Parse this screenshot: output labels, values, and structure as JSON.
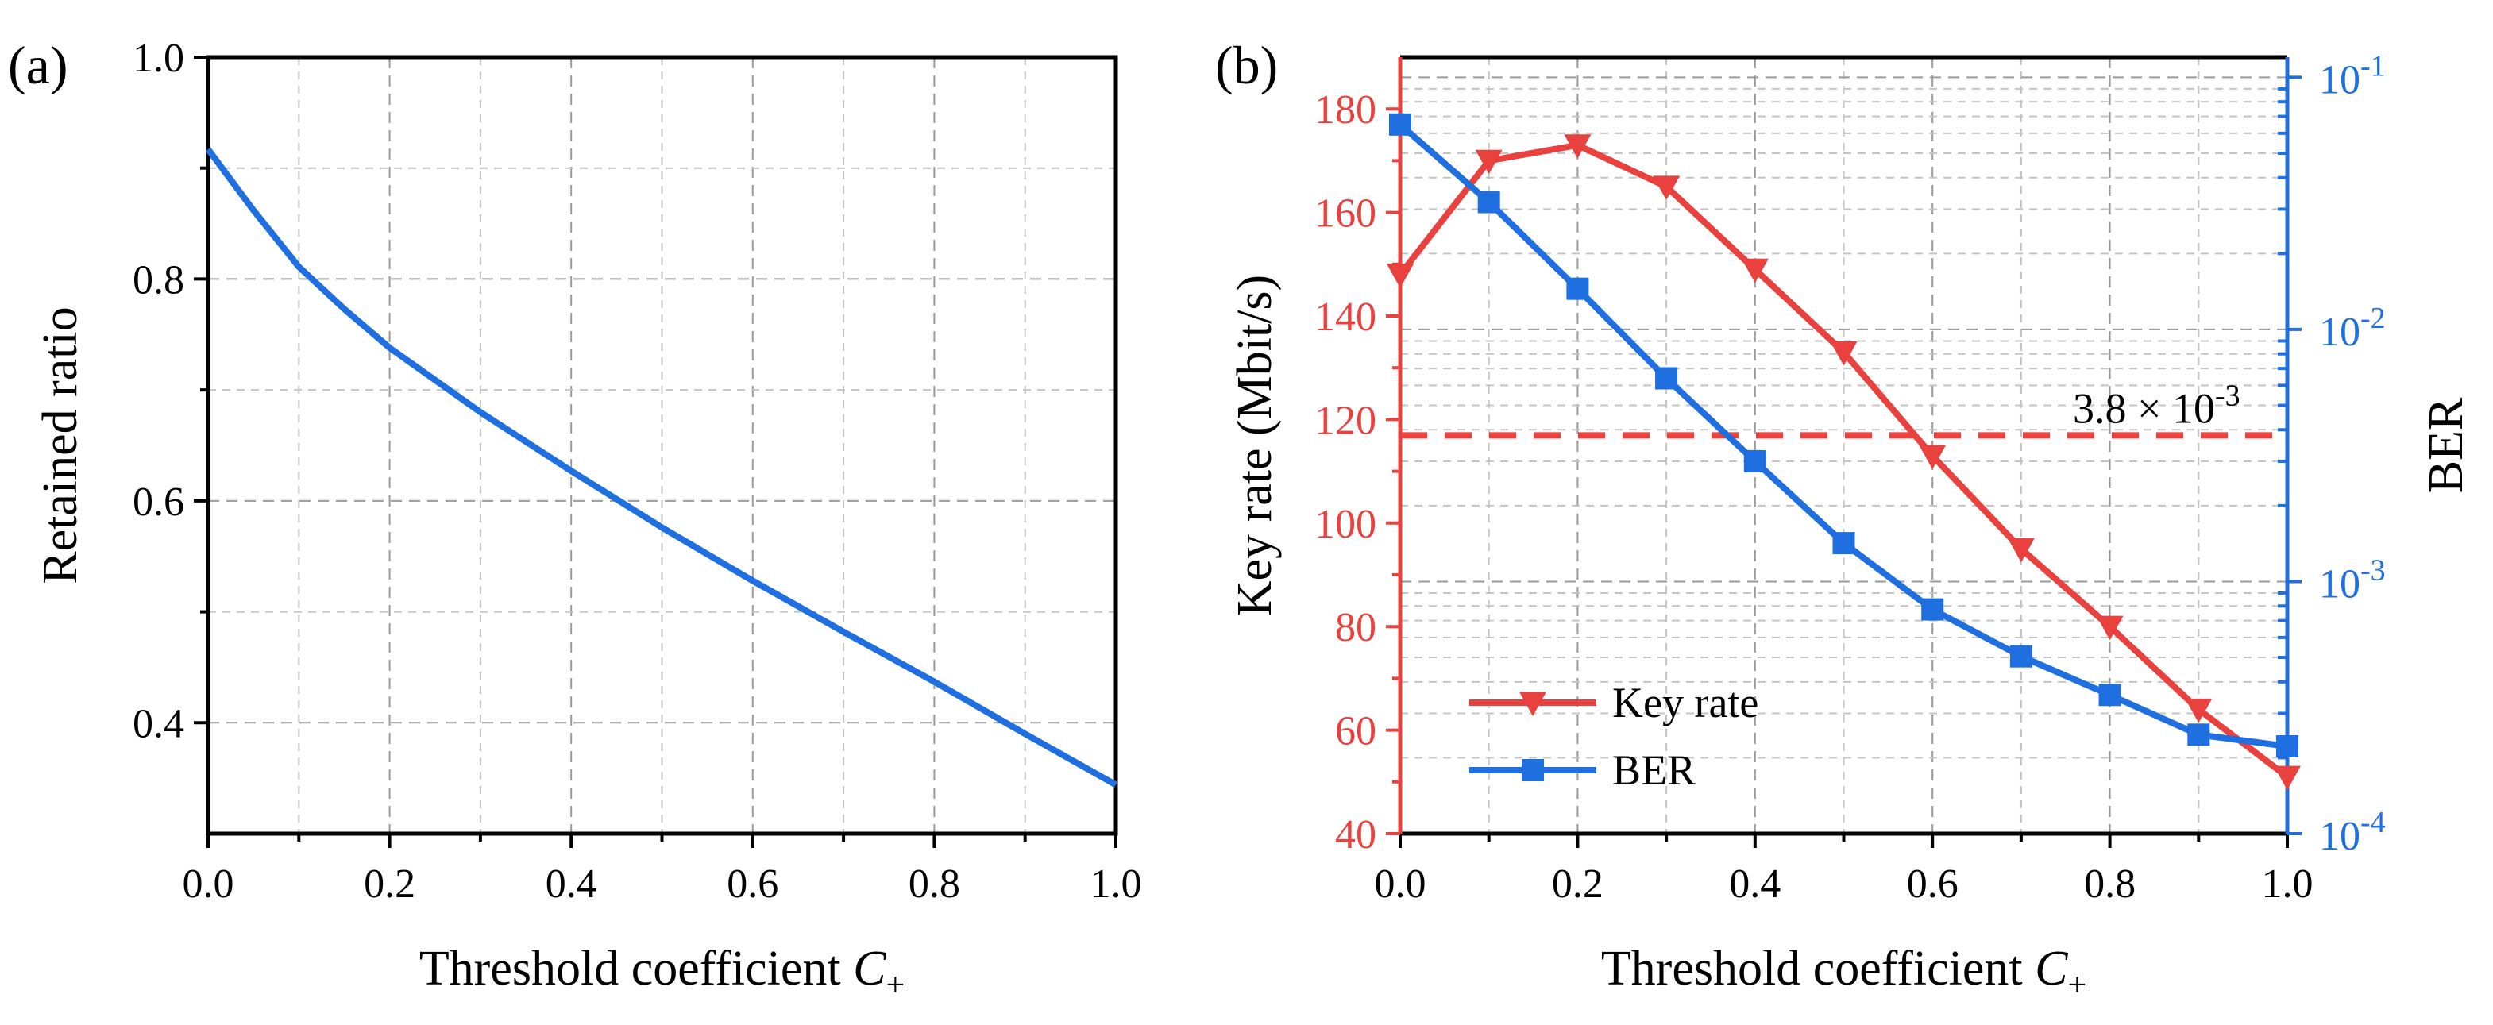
{
  "chart_data": [
    {
      "panel_label": "(a)",
      "type": "line",
      "title": "",
      "xlabel": "Threshold coefficient",
      "xlabel_symbol": "C",
      "xlabel_subscript": "+",
      "ylabel": "Retained ratio",
      "xlim": [
        0.0,
        1.0
      ],
      "ylim": [
        0.3,
        1.0
      ],
      "x_ticks": [
        0.0,
        0.2,
        0.4,
        0.6,
        0.8,
        1.0
      ],
      "x_tick_labels": [
        "0.0",
        "0.2",
        "0.4",
        "0.6",
        "0.8",
        "1.0"
      ],
      "y_ticks": [
        0.4,
        0.6,
        0.8,
        1.0
      ],
      "y_tick_labels": [
        "0.4",
        "0.6",
        "0.8",
        "1.0"
      ],
      "grid": true,
      "colors": {
        "line": "#1f6fe0",
        "axis": "#000000",
        "grid": "#9a9a9a"
      },
      "series": [
        {
          "name": "Retained ratio",
          "x": [
            0.0,
            0.05,
            0.1,
            0.15,
            0.2,
            0.3,
            0.4,
            0.5,
            0.6,
            0.7,
            0.8,
            0.9,
            1.0
          ],
          "y": [
            0.917,
            0.862,
            0.811,
            0.773,
            0.738,
            0.68,
            0.627,
            0.576,
            0.528,
            0.482,
            0.437,
            0.39,
            0.344
          ]
        }
      ]
    },
    {
      "panel_label": "(b)",
      "type": "line",
      "title": "",
      "xlabel": "Threshold coefficient",
      "xlabel_symbol": "C",
      "xlabel_subscript": "+",
      "ylabel_left": "Key rate (Mbit/s)",
      "ylabel_right": "BER",
      "xlim": [
        0.0,
        1.0
      ],
      "ylim_left": [
        40,
        190
      ],
      "ylim_right_log10": [
        -4.0,
        -0.92
      ],
      "x_ticks": [
        0.0,
        0.2,
        0.4,
        0.6,
        0.8,
        1.0
      ],
      "x_tick_labels": [
        "0.0",
        "0.2",
        "0.4",
        "0.6",
        "0.8",
        "1.0"
      ],
      "y_left_ticks": [
        40,
        60,
        80,
        100,
        120,
        140,
        160,
        180
      ],
      "y_left_tick_labels": [
        "40",
        "60",
        "80",
        "100",
        "120",
        "140",
        "160",
        "180"
      ],
      "y_right_ticks_log10": [
        -4,
        -3,
        -2,
        -1
      ],
      "y_right_tick_base": [
        "10",
        "10",
        "10",
        "10"
      ],
      "y_right_tick_exp": [
        "-4",
        "-3",
        "-2",
        "-1"
      ],
      "grid": true,
      "legend_position": "bottom-left",
      "colors": {
        "key_rate": "#e8413e",
        "ber": "#1f6fe0",
        "axis_left": "#e8413e",
        "axis_right": "#1f6fe0",
        "threshold": "#e8413e",
        "grid": "#9a9a9a"
      },
      "threshold": {
        "ber_value": 0.0038,
        "label_base": "3.8 × 10",
        "label_exp": "-3"
      },
      "series": [
        {
          "name": "Key rate",
          "axis": "left",
          "marker": "triangle-down",
          "x": [
            0.0,
            0.1,
            0.2,
            0.3,
            0.4,
            0.5,
            0.6,
            0.7,
            0.8,
            0.9,
            1.0
          ],
          "values": [
            148,
            170,
            173,
            165,
            149,
            133,
            113,
            95,
            80,
            64,
            51
          ]
        },
        {
          "name": "BER",
          "axis": "right",
          "marker": "square",
          "x": [
            0.0,
            0.1,
            0.2,
            0.3,
            0.4,
            0.5,
            0.6,
            0.7,
            0.8,
            0.9,
            1.0
          ],
          "values": [
            0.065,
            0.032,
            0.0145,
            0.0064,
            0.003,
            0.00142,
            0.000775,
            0.000505,
            0.000355,
            0.000247,
            0.000222
          ]
        }
      ]
    }
  ]
}
